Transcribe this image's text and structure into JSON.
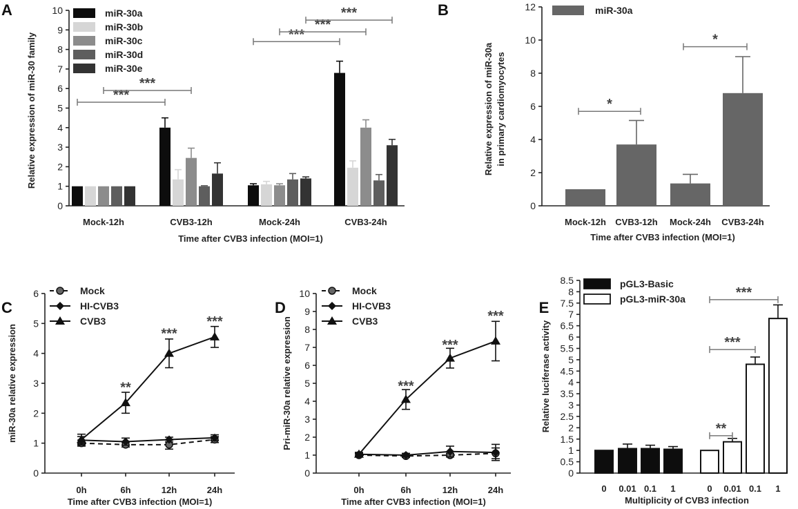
{
  "chart_data": [
    {
      "panel": "A",
      "type": "bar",
      "xlabel": "Time after CVB3 infection (MOI=1)",
      "ylabel": "Relative expression of miR-30 family",
      "ylim": [
        0,
        10
      ],
      "yticks": [
        0,
        1,
        2,
        3,
        4,
        5,
        6,
        7,
        8,
        9,
        10
      ],
      "categories": [
        "Mock-12h",
        "CVB3-12h",
        "Mock-24h",
        "CVB3-24h"
      ],
      "series": [
        {
          "name": "miR-30a",
          "color": "#0d0d0d",
          "values": [
            1.0,
            4.0,
            1.05,
            6.8
          ],
          "errors": [
            0.0,
            0.5,
            0.08,
            0.6
          ]
        },
        {
          "name": "miR-30b",
          "color": "#d6d6d6",
          "values": [
            1.0,
            1.35,
            1.1,
            1.95
          ],
          "errors": [
            0.0,
            0.5,
            0.15,
            0.35
          ]
        },
        {
          "name": "miR-30c",
          "color": "#8c8c8c",
          "values": [
            1.0,
            2.45,
            1.05,
            4.0
          ],
          "errors": [
            0.0,
            0.5,
            0.08,
            0.4
          ]
        },
        {
          "name": "miR-30d",
          "color": "#5e5e5e",
          "values": [
            1.0,
            1.0,
            1.35,
            1.3
          ],
          "errors": [
            0.0,
            0.03,
            0.3,
            0.3
          ]
        },
        {
          "name": "miR-30e",
          "color": "#333333",
          "values": [
            1.0,
            1.65,
            1.4,
            3.1
          ],
          "errors": [
            0.0,
            0.55,
            0.08,
            0.3
          ]
        }
      ],
      "annotations": [
        {
          "text": "***",
          "from": "Mock-12h",
          "to": "CVB3-12h",
          "series_from": 0,
          "series_to": 0,
          "y": 5.3
        },
        {
          "text": "***",
          "from": "Mock-12h",
          "to": "CVB3-12h",
          "series_from": 2,
          "series_to": 2,
          "y": 5.9
        },
        {
          "text": "***",
          "from": "Mock-24h",
          "to": "CVB3-24h",
          "series_from": 0,
          "series_to": 0,
          "y": 8.4
        },
        {
          "text": "***",
          "from": "Mock-24h",
          "to": "CVB3-24h",
          "series_from": 2,
          "series_to": 2,
          "y": 8.9
        },
        {
          "text": "***",
          "from": "Mock-24h",
          "to": "CVB3-24h",
          "series_from": 4,
          "series_to": 4,
          "y": 9.5
        }
      ]
    },
    {
      "panel": "B",
      "type": "bar",
      "xlabel": "Time after CVB3 infection (MOI=1)",
      "ylabel_line1": "Relative expression of miR-30a",
      "ylabel_line2": "in primary cardiomyocytes",
      "ylim": [
        0,
        12
      ],
      "yticks": [
        0,
        2,
        4,
        6,
        8,
        10,
        12
      ],
      "categories": [
        "Mock-12h",
        "CVB3-12h",
        "Mock-24h",
        "CVB3-24h"
      ],
      "series": [
        {
          "name": "miR-30a",
          "color": "#666666",
          "values": [
            1.0,
            3.7,
            1.35,
            6.8
          ],
          "errors": [
            0.0,
            1.45,
            0.55,
            2.2
          ]
        }
      ],
      "annotations": [
        {
          "text": "*",
          "from": "Mock-12h",
          "to": "CVB3-12h",
          "y": 5.7
        },
        {
          "text": "*",
          "from": "Mock-24h",
          "to": "CVB3-24h",
          "y": 9.6
        }
      ]
    },
    {
      "panel": "C",
      "type": "line",
      "xlabel": "Time after CVB3 infection (MOI=1)",
      "ylabel": "miR-30a relative expression",
      "ylim": [
        0,
        6
      ],
      "yticks": [
        0,
        1,
        2,
        3,
        4,
        5,
        6
      ],
      "categories": [
        "0h",
        "6h",
        "12h",
        "24h"
      ],
      "series": [
        {
          "name": "Mock",
          "marker": "circle",
          "dashed": true,
          "values": [
            1.0,
            0.95,
            0.95,
            1.12
          ],
          "errors": [
            0.1,
            0.08,
            0.15,
            0.1
          ]
        },
        {
          "name": "HI-CVB3",
          "marker": "diamond",
          "dashed": false,
          "values": [
            1.1,
            1.05,
            1.12,
            1.18
          ],
          "errors": [
            0.12,
            0.12,
            0.08,
            0.1
          ]
        },
        {
          "name": "CVB3",
          "marker": "triangle",
          "dashed": false,
          "values": [
            1.12,
            2.35,
            4.0,
            4.55
          ],
          "errors": [
            0.18,
            0.35,
            0.48,
            0.35
          ]
        }
      ],
      "annotations": [
        {
          "text": "**",
          "category": "6h",
          "y": 2.9
        },
        {
          "text": "***",
          "category": "12h",
          "y": 4.7
        },
        {
          "text": "***",
          "category": "24h",
          "y": 5.1
        }
      ]
    },
    {
      "panel": "D",
      "type": "line",
      "xlabel": "Time after CVB3 infection (MOI=1)",
      "ylabel": "Pri-miR-30a relative expression",
      "ylim": [
        0,
        10
      ],
      "yticks": [
        0,
        1,
        2,
        3,
        4,
        5,
        6,
        7,
        8,
        9,
        10
      ],
      "categories": [
        "0h",
        "6h",
        "12h",
        "24h"
      ],
      "series": [
        {
          "name": "Mock",
          "marker": "circle",
          "dashed": true,
          "values": [
            1.0,
            0.95,
            1.0,
            1.1
          ],
          "errors": [
            0.1,
            0.08,
            0.1,
            0.3
          ]
        },
        {
          "name": "HI-CVB3",
          "marker": "diamond",
          "dashed": false,
          "values": [
            1.05,
            1.0,
            1.2,
            1.15
          ],
          "errors": [
            0.1,
            0.1,
            0.3,
            0.45
          ]
        },
        {
          "name": "CVB3",
          "marker": "triangle",
          "dashed": false,
          "values": [
            1.05,
            4.1,
            6.4,
            7.35
          ],
          "errors": [
            0.1,
            0.55,
            0.55,
            1.1
          ]
        }
      ],
      "annotations": [
        {
          "text": "***",
          "category": "6h",
          "y": 4.9
        },
        {
          "text": "***",
          "category": "12h",
          "y": 7.2
        },
        {
          "text": "***",
          "category": "24h",
          "y": 8.8
        }
      ]
    },
    {
      "panel": "E",
      "type": "bar",
      "xlabel": "Multiplicity of CVB3 infection",
      "ylabel": "Relative luciferase activity",
      "ylim": [
        0,
        8.5
      ],
      "yticks": [
        0,
        0.5,
        1,
        1.5,
        2,
        2.5,
        3,
        3.5,
        4,
        4.5,
        5,
        5.5,
        6,
        6.5,
        7,
        7.5,
        8,
        8.5
      ],
      "categories": [
        "0",
        "0.01",
        "0.1",
        "1"
      ],
      "series": [
        {
          "name": "pGL3-Basic",
          "color": "#0d0d0d",
          "fill": "#0d0d0d",
          "values": [
            1.0,
            1.08,
            1.08,
            1.05
          ],
          "errors": [
            0.0,
            0.2,
            0.15,
            0.12
          ]
        },
        {
          "name": "pGL3-miR-30a",
          "color": "#0d0d0d",
          "fill": "#ffffff",
          "values": [
            1.0,
            1.38,
            4.8,
            6.82
          ],
          "errors": [
            0.0,
            0.15,
            0.32,
            0.6
          ]
        }
      ],
      "annotations": [
        {
          "text": "**",
          "from": "0",
          "to": "0.01",
          "y": 1.65
        },
        {
          "text": "***",
          "from": "0",
          "to": "0.1",
          "y": 5.45
        },
        {
          "text": "***",
          "from": "0",
          "to": "1",
          "y": 7.65
        }
      ]
    }
  ]
}
